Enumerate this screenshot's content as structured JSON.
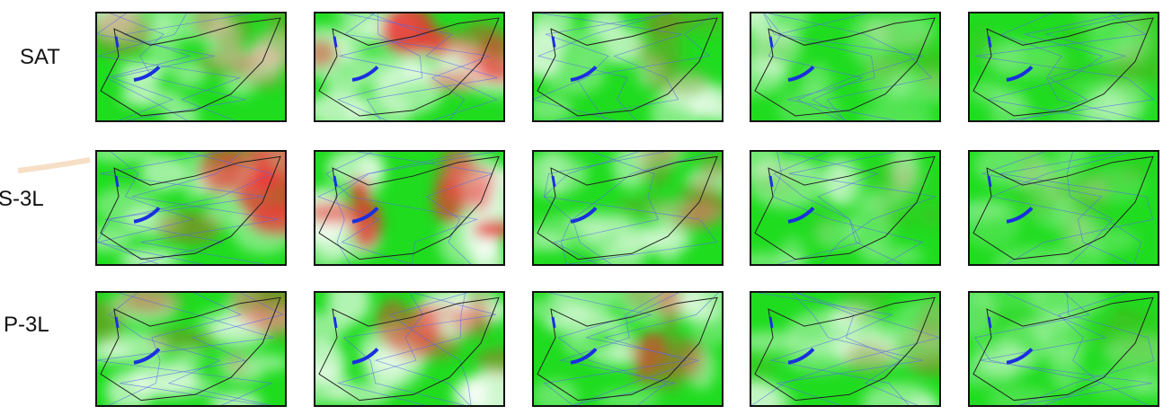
{
  "rows": [
    {
      "label": "SAT"
    },
    {
      "label": "S-3L"
    },
    {
      "label": "P-3L"
    }
  ]
}
